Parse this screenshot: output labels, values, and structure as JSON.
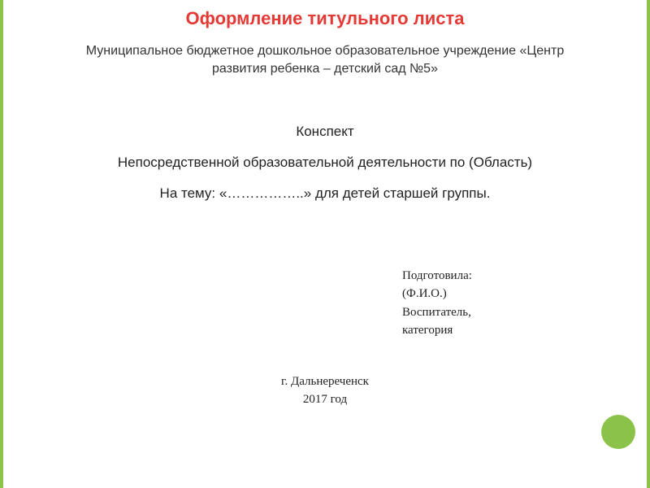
{
  "title": {
    "text": "Оформление титульного листа",
    "color": "#e53935",
    "font_size": 22,
    "font_weight": "bold"
  },
  "institution": {
    "line1": "Муниципальное бюджетное дошкольное образовательное учреждение «Центр",
    "line2": "развития ребенка – детский сад №5»",
    "font_size": 16,
    "color": "#333333"
  },
  "subtitle": {
    "text": "Конспект",
    "font_size": 17
  },
  "description": {
    "text": "Непосредственной образовательной деятельности по (Область)",
    "font_size": 17
  },
  "topic": {
    "text": "На тему: «……………..» для детей старшей группы.",
    "font_size": 17
  },
  "author": {
    "prepared_label": "Подготовила:",
    "name_placeholder": "(Ф.И.О.)",
    "role": "Воспитатель,",
    "category": " категория",
    "font_size": 15,
    "font_family": "Times New Roman"
  },
  "footer": {
    "city": "г. Дальнереченск",
    "year": "2017 год",
    "font_size": 15,
    "font_family": "Times New Roman"
  },
  "decoration": {
    "border_color": "#8bc34a",
    "circle_color": "#8bc34a",
    "background_color": "#ffffff"
  }
}
